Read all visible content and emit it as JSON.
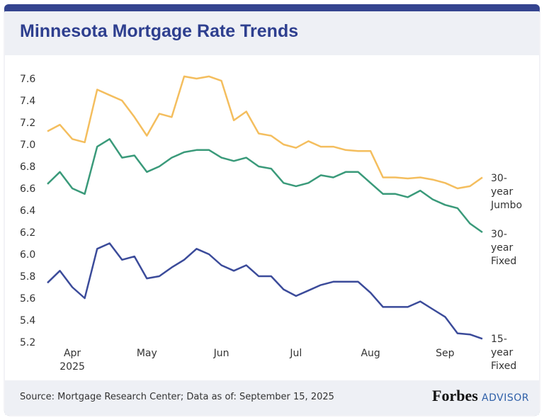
{
  "chart_data": {
    "type": "line",
    "title": "Minnesota Mortgage Rate Trends",
    "categories": [
      null,
      null,
      "Apr 2025",
      null,
      null,
      null,
      null,
      null,
      "May",
      null,
      null,
      null,
      null,
      null,
      "Jun",
      null,
      null,
      null,
      null,
      null,
      "Jul",
      null,
      null,
      null,
      null,
      null,
      "Aug",
      null,
      null,
      null,
      null,
      null,
      "Sep",
      null,
      null,
      null
    ],
    "series": [
      {
        "name": "30-year Jumbo",
        "color": "#f4be5e",
        "values": [
          7.12,
          7.18,
          7.05,
          7.02,
          7.5,
          7.45,
          7.4,
          7.25,
          7.08,
          7.28,
          7.25,
          7.62,
          7.6,
          7.62,
          7.58,
          7.22,
          7.3,
          7.1,
          7.08,
          7.0,
          6.97,
          7.03,
          6.98,
          6.98,
          6.95,
          6.94,
          6.94,
          6.7,
          6.7,
          6.69,
          6.7,
          6.68,
          6.65,
          6.6,
          6.62,
          6.7
        ]
      },
      {
        "name": "30-year Fixed",
        "color": "#3a9a7a",
        "values": [
          6.64,
          6.75,
          6.6,
          6.55,
          6.98,
          7.05,
          6.88,
          6.9,
          6.75,
          6.8,
          6.88,
          6.93,
          6.95,
          6.95,
          6.88,
          6.85,
          6.88,
          6.8,
          6.78,
          6.65,
          6.62,
          6.65,
          6.72,
          6.7,
          6.75,
          6.75,
          6.65,
          6.55,
          6.55,
          6.52,
          6.58,
          6.5,
          6.45,
          6.42,
          6.28,
          6.2
        ]
      },
      {
        "name": "15-year Fixed",
        "color": "#3b4b9a",
        "values": [
          5.74,
          5.85,
          5.7,
          5.6,
          6.05,
          6.1,
          5.95,
          5.98,
          5.78,
          5.8,
          5.88,
          5.95,
          6.05,
          6.0,
          5.9,
          5.85,
          5.9,
          5.8,
          5.8,
          5.68,
          5.62,
          5.67,
          5.72,
          5.75,
          5.75,
          5.75,
          5.65,
          5.52,
          5.52,
          5.52,
          5.57,
          5.5,
          5.43,
          5.28,
          5.27,
          5.23
        ]
      }
    ],
    "ylim": [
      5.15,
      7.7
    ],
    "yticks": [
      5.2,
      5.4,
      5.6,
      5.8,
      {
        "value": 6,
        "label": "6.0"
      },
      6.2,
      6.4,
      6.6,
      6.8,
      {
        "value": 7,
        "label": "7.0"
      },
      7.2,
      7.4,
      7.6
    ],
    "grid": false
  },
  "footer": {
    "source": "Source: Mortgage Research Center; Data as of: September 15, 2025",
    "brand": "Forbes",
    "sub": "ADVISOR"
  }
}
